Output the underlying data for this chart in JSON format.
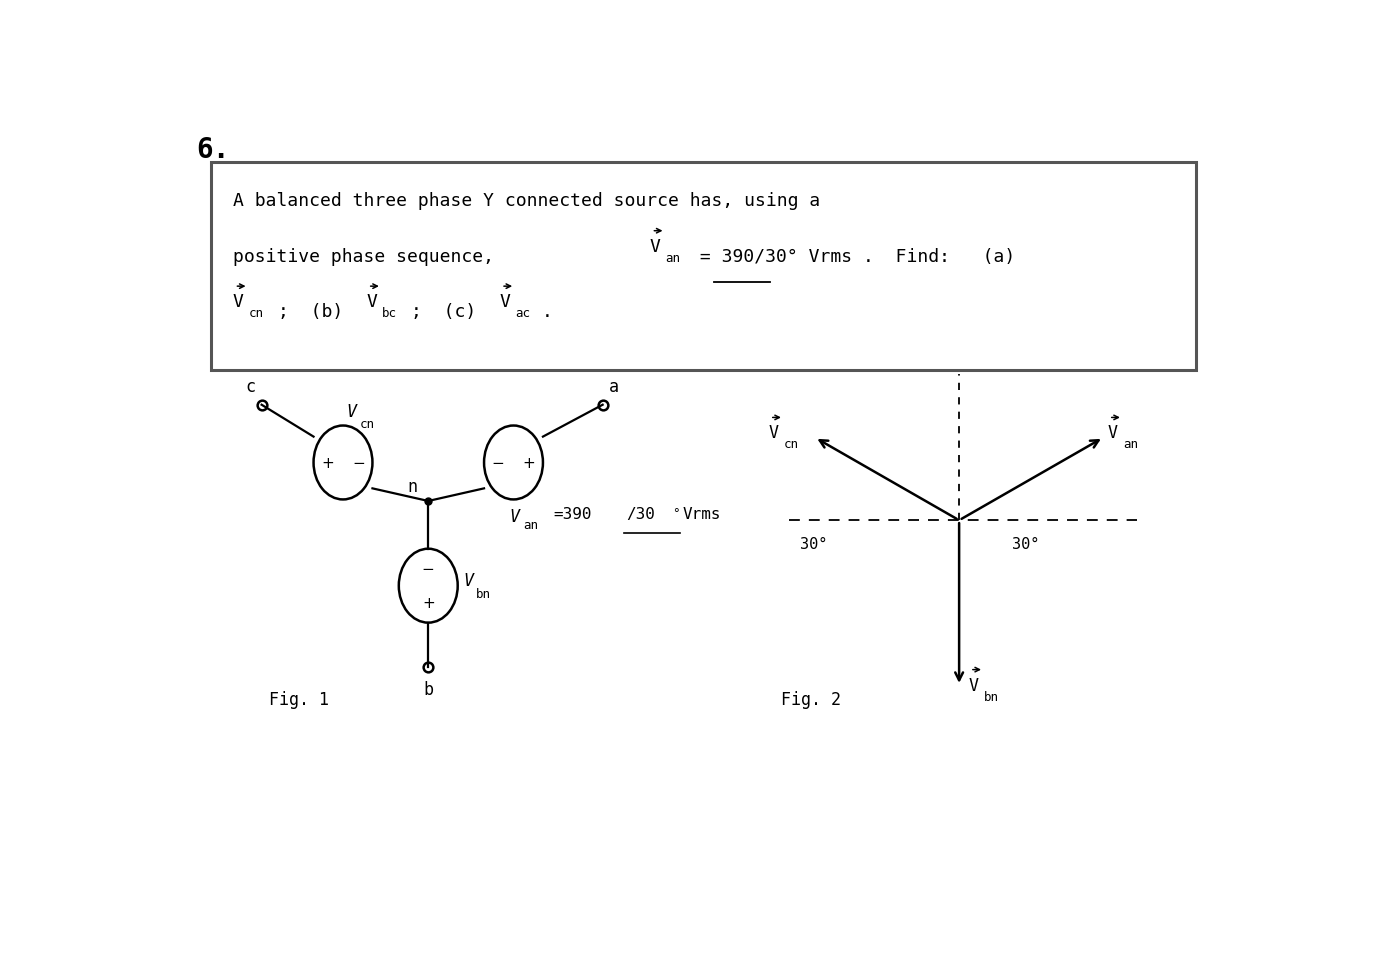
{
  "background_color": "#ffffff",
  "fig_width": 13.8,
  "fig_height": 9.62,
  "title_number": "6.",
  "fig1_label": "Fig. 1",
  "fig2_label": "Fig. 2"
}
